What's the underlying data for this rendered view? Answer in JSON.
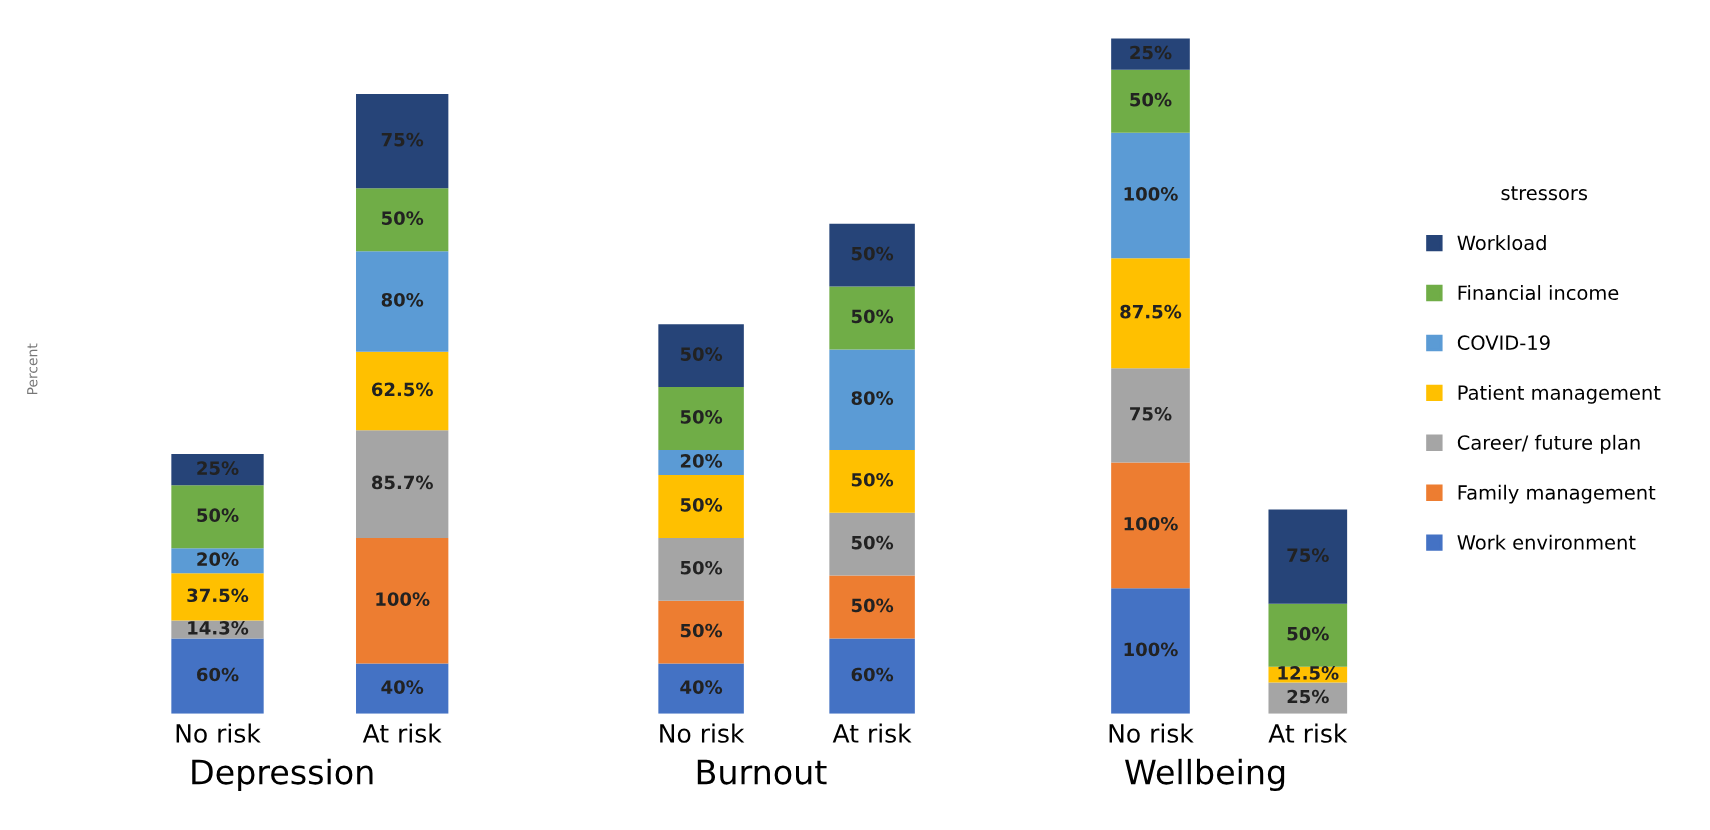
{
  "chart_data": [
    {
      "type": "bar",
      "stacked": true,
      "xlabel": "Depression",
      "ylabel": "Percent",
      "categories": [
        "No risk",
        "At risk"
      ],
      "series": [
        {
          "color": "#4472c4",
          "values": [
            60,
            40
          ],
          "value_labels": [
            "60%",
            "40%"
          ]
        },
        {
          "color": "#ed7d31",
          "values": [
            null,
            100
          ],
          "value_labels": [
            null,
            "100%"
          ]
        },
        {
          "color": "#a5a5a5",
          "values": [
            14.3,
            85.7
          ],
          "value_labels": [
            "14.3%",
            "85.7%"
          ]
        },
        {
          "color": "#ffc000",
          "values": [
            37.5,
            62.5
          ],
          "value_labels": [
            "37.5%",
            "62.5%"
          ]
        },
        {
          "color": "#5b9bd5",
          "values": [
            20,
            80
          ],
          "value_labels": [
            "20%",
            "80%"
          ]
        },
        {
          "color": "#70ad47",
          "values": [
            50,
            50
          ],
          "value_labels": [
            "50%",
            "50%"
          ]
        },
        {
          "color": "#264478",
          "values": [
            25,
            75
          ],
          "value_labels": [
            "25%",
            "75%"
          ]
        }
      ]
    },
    {
      "type": "bar",
      "stacked": true,
      "xlabel": "Burnout",
      "categories": [
        "No risk",
        "At risk"
      ],
      "series": [
        {
          "color": "#4472c4",
          "values": [
            40,
            60
          ],
          "value_labels": [
            "40%",
            "60%"
          ]
        },
        {
          "color": "#ed7d31",
          "values": [
            50,
            50
          ],
          "value_labels": [
            "50%",
            "50%"
          ]
        },
        {
          "color": "#a5a5a5",
          "values": [
            50,
            50
          ],
          "value_labels": [
            "50%",
            "50%"
          ]
        },
        {
          "color": "#ffc000",
          "values": [
            50,
            50
          ],
          "value_labels": [
            "50%",
            "50%"
          ]
        },
        {
          "color": "#5b9bd5",
          "values": [
            20,
            80
          ],
          "value_labels": [
            "20%",
            "80%"
          ]
        },
        {
          "color": "#70ad47",
          "values": [
            50,
            50
          ],
          "value_labels": [
            "50%",
            "50%"
          ]
        },
        {
          "color": "#264478",
          "values": [
            50,
            50
          ],
          "value_labels": [
            "50%",
            "50%"
          ]
        }
      ]
    },
    {
      "type": "bar",
      "stacked": true,
      "xlabel": "Wellbeing",
      "categories": [
        "No risk",
        "At risk"
      ],
      "legend": "right",
      "legend_title": "stressors",
      "series": [
        {
          "name": "Work environment",
          "color": "#4472c4",
          "values": [
            100,
            null
          ],
          "value_labels": [
            "100%",
            null
          ]
        },
        {
          "name": "Family management",
          "color": "#ed7d31",
          "values": [
            100,
            null
          ],
          "value_labels": [
            "100%",
            null
          ]
        },
        {
          "name": "Career/ future plan",
          "color": "#a5a5a5",
          "values": [
            75,
            25
          ],
          "value_labels": [
            "75%",
            "25%"
          ]
        },
        {
          "name": "Patient management",
          "color": "#ffc000",
          "values": [
            87.5,
            12.5
          ],
          "value_labels": [
            "87.5%",
            "12.5%"
          ]
        },
        {
          "name": "COVID-19",
          "color": "#5b9bd5",
          "values": [
            100,
            null
          ],
          "value_labels": [
            "100%",
            null
          ]
        },
        {
          "name": "Financial income",
          "color": "#70ad47",
          "values": [
            50,
            50
          ],
          "value_labels": [
            "50%",
            "50%"
          ]
        },
        {
          "name": "Workload",
          "color": "#264478",
          "values": [
            25,
            75
          ],
          "value_labels": [
            "25%",
            "75%"
          ]
        }
      ]
    }
  ]
}
